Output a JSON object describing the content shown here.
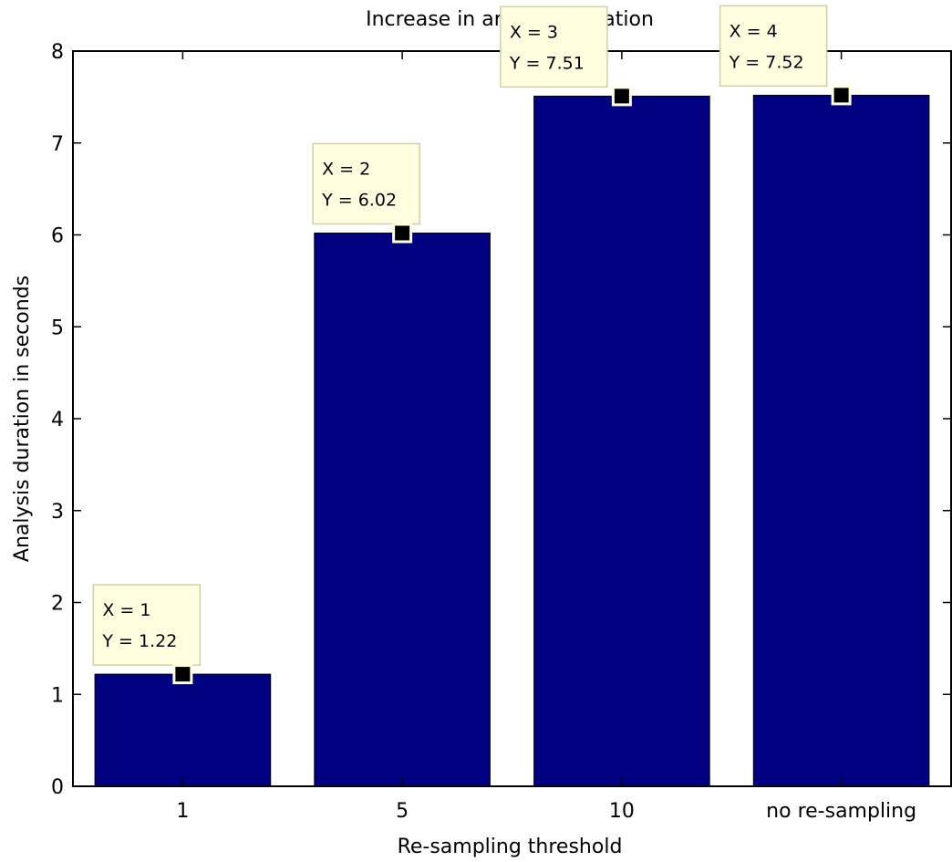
{
  "chart_data": {
    "type": "bar",
    "title": "Increase in analysis duration",
    "xlabel": "Re-sampling threshold",
    "ylabel": "Analysis duration in seconds",
    "categories": [
      "1",
      "5",
      "10",
      "no re-sampling"
    ],
    "values": [
      1.22,
      6.02,
      7.51,
      7.52
    ],
    "ylim": [
      0,
      8
    ],
    "yticks": [
      "0",
      "1",
      "2",
      "3",
      "4",
      "5",
      "6",
      "7",
      "8"
    ],
    "bar_color": "#000080",
    "grid": false,
    "datatips": [
      {
        "x_text": "X = 1",
        "y_text": "Y = 1.22"
      },
      {
        "x_text": "X = 2",
        "y_text": "Y = 6.02"
      },
      {
        "x_text": "X = 3",
        "y_text": "Y = 7.51"
      },
      {
        "x_text": "X = 4",
        "y_text": "Y = 7.52"
      }
    ],
    "datatip_background": "#ffffe0"
  }
}
